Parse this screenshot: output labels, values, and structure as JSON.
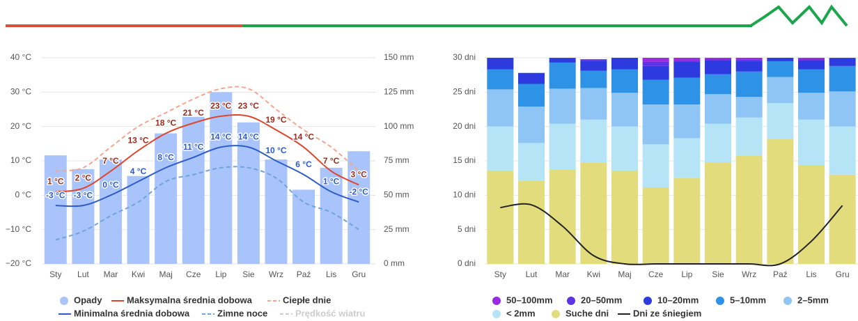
{
  "chart_data": [
    {
      "type": "combo",
      "categories": [
        "Sty",
        "Lut",
        "Mar",
        "Kwi",
        "Maj",
        "Cze",
        "Lip",
        "Sie",
        "Wrz",
        "Paź",
        "Lis",
        "Gru"
      ],
      "ylim": [
        -20,
        40
      ],
      "yticks": [
        {
          "value": -20,
          "label": "−20 °C"
        },
        {
          "value": -10,
          "label": "−10 °C"
        },
        {
          "value": 0,
          "label": "0 °C"
        },
        {
          "value": 10,
          "label": "10 °C"
        },
        {
          "value": 20,
          "label": "20 °C"
        },
        {
          "value": 30,
          "label": "30 °C"
        },
        {
          "value": 40,
          "label": "40 °C"
        }
      ],
      "y2lim": [
        0,
        150
      ],
      "y2ticks": [
        {
          "value": 0,
          "label": "0 mm"
        },
        {
          "value": 25,
          "label": "25 mm"
        },
        {
          "value": 50,
          "label": "50 mm"
        },
        {
          "value": 75,
          "label": "75 mm"
        },
        {
          "value": 100,
          "label": "100 mm"
        },
        {
          "value": 125,
          "label": "125 mm"
        },
        {
          "value": 150,
          "label": "150 mm"
        }
      ],
      "grid": true,
      "series": [
        {
          "name": "Opady",
          "type": "bar",
          "axis": "y2",
          "color": "#a9c4fb",
          "values": [
            79,
            69,
            76,
            64,
            95,
            107,
            125,
            103,
            76,
            54,
            70,
            82
          ]
        },
        {
          "name": "Maksymalna średnia dobowa",
          "type": "line",
          "color": "#e0452b",
          "label_color": "#9e2a1a",
          "values": [
            1,
            2,
            7,
            13,
            18,
            21,
            23,
            23,
            19,
            14,
            7,
            3
          ],
          "value_labels": [
            "1 °C",
            "2 °C",
            "7 °C",
            "13 °C",
            "18 °C",
            "21 °C",
            "23 °C",
            "23 °C",
            "19 °C",
            "14 °C",
            "7 °C",
            "3 °C"
          ]
        },
        {
          "name": "Ciepłe dnie",
          "type": "line",
          "dashed": true,
          "color": "#f6a48e",
          "values": [
            7,
            8,
            14,
            20,
            24,
            28,
            31,
            31,
            25,
            19,
            14,
            7
          ]
        },
        {
          "name": "Minimalna średnia dobowa",
          "type": "line",
          "color": "#2d5bc8",
          "label_color": "#2d5bc8",
          "values": [
            -3,
            -3,
            0,
            4,
            8,
            11,
            14,
            14,
            10,
            6,
            1,
            -2
          ],
          "value_labels": [
            "-3 °C",
            "-3 °C",
            "0 °C",
            "4 °C",
            "8 °C",
            "11 °C",
            "14 °C",
            "14 °C",
            "10 °C",
            "6 °C",
            "1 °C",
            "-2 °C"
          ]
        },
        {
          "name": "Zimne noce",
          "type": "line",
          "dashed": true,
          "color": "#6ea3dc",
          "values": [
            -13,
            -10.5,
            -6,
            -2,
            4,
            6,
            8,
            8,
            5,
            -2,
            -5,
            -10
          ]
        },
        {
          "name": "Prędkość wiatru",
          "type": "line",
          "dashed": true,
          "hidden": true,
          "color": "#cccccc",
          "values": [
            null,
            null,
            null,
            null,
            null,
            null,
            null,
            null,
            null,
            null,
            null,
            null
          ]
        }
      ]
    },
    {
      "type": "stacked_bar",
      "categories": [
        "Sty",
        "Lut",
        "Mar",
        "Kwi",
        "Maj",
        "Cze",
        "Lip",
        "Sie",
        "Wrz",
        "Paź",
        "Lis",
        "Gru"
      ],
      "ylim": [
        0,
        30
      ],
      "yticks": [
        {
          "value": 0,
          "label": "0 dni"
        },
        {
          "value": 5,
          "label": "5 dni"
        },
        {
          "value": 10,
          "label": "10 dni"
        },
        {
          "value": 15,
          "label": "15 dni"
        },
        {
          "value": 20,
          "label": "20 dni"
        },
        {
          "value": 25,
          "label": "25 dni"
        },
        {
          "value": 30,
          "label": "30 dni"
        }
      ],
      "grid": true,
      "series": [
        {
          "name": "50–100mm",
          "type": "bar",
          "color": "#9a2be2",
          "values": [
            0,
            0,
            0,
            0.1,
            0,
            0.6,
            0.4,
            0.2,
            0.3,
            0,
            0.2,
            0
          ]
        },
        {
          "name": "20–50mm",
          "type": "bar",
          "color": "#5c34e6",
          "values": [
            0,
            0,
            0.1,
            0.2,
            0,
            0.6,
            0.2,
            0.2,
            0.2,
            0,
            0.2,
            0.1
          ]
        },
        {
          "name": "10–20mm",
          "type": "bar",
          "color": "#2c3ae0",
          "values": [
            1.7,
            1.6,
            0.6,
            1.4,
            1.7,
            2.0,
            2.3,
            2.0,
            1.5,
            0.5,
            1.3,
            1.1
          ]
        },
        {
          "name": "5–10mm",
          "type": "bar",
          "color": "#2e93e6",
          "values": [
            2.9,
            3.3,
            3.8,
            2.5,
            3.4,
            3.6,
            3.9,
            2.9,
            3.7,
            2.3,
            3.4,
            3.7
          ]
        },
        {
          "name": "2–5mm",
          "type": "bar",
          "color": "#8ec5f5",
          "values": [
            5.4,
            5.3,
            5.1,
            4.6,
            4.9,
            5.8,
            4.9,
            4.3,
            3.0,
            3.8,
            3.9,
            5.1
          ]
        },
        {
          "name": "< 2mm",
          "type": "bar",
          "color": "#b4e4f6",
          "values": [
            6.4,
            5.5,
            6.7,
            6.3,
            6.4,
            6.3,
            5.8,
            5.6,
            5.5,
            5.2,
            6.6,
            7.0
          ]
        },
        {
          "name": "Suche dni",
          "type": "bar",
          "color": "#e2dc7c",
          "values": [
            13.6,
            12.1,
            13.7,
            14.7,
            13.6,
            11.1,
            12.5,
            14.8,
            15.8,
            18.2,
            14.4,
            13.0
          ]
        },
        {
          "name": "Dni ze śniegiem",
          "type": "line",
          "color": "#222222",
          "values": [
            8.2,
            8.6,
            5.5,
            1.2,
            0,
            0,
            0,
            0,
            0,
            0,
            3.3,
            8.5
          ]
        }
      ]
    }
  ]
}
